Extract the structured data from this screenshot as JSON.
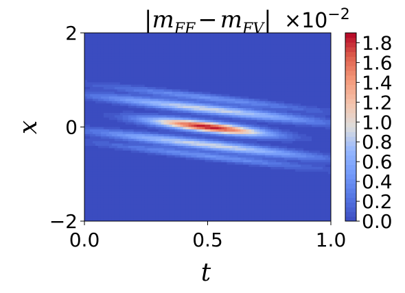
{
  "chart_data": {
    "type": "heatmap",
    "title": "|m_FF − m_FV|",
    "title_parts": {
      "bar": "|",
      "m1": "m",
      "sub1": "FF",
      "minus": "−",
      "m2": "m",
      "sub2": "FV",
      "bar_end": "|"
    },
    "offset_text": {
      "base": "×10",
      "exponent": "−2"
    },
    "xlabel": "t",
    "ylabel": "x",
    "xlim": [
      0.0,
      1.0
    ],
    "ylim": [
      -2,
      2
    ],
    "x_ticks": [
      "0.0",
      "0.5",
      "1.0"
    ],
    "x_tick_values": [
      0.0,
      0.5,
      1.0
    ],
    "y_ticks": [
      "−2",
      "0",
      "2"
    ],
    "y_tick_values": [
      -2,
      0,
      2
    ],
    "colorbar": {
      "colormap": "coolwarm",
      "range": [
        0.0,
        1.9
      ],
      "ticks": [
        "0.0",
        "0.2",
        "0.4",
        "0.6",
        "0.8",
        "1.0",
        "1.2",
        "1.4",
        "1.6",
        "1.8"
      ],
      "tick_values": [
        0.0,
        0.2,
        0.4,
        0.6,
        0.8,
        1.0,
        1.2,
        1.4,
        1.6,
        1.8
      ]
    },
    "field": {
      "description_of_shape": "elongated band along x = 0.3 - 0.6 t, peak near t = 0.5, x = 0",
      "peak_value": 1.9,
      "peak_t": 0.5,
      "peak_x": 0.0,
      "band_center_intercept": 0.3,
      "band_center_slope": -0.6,
      "side_lobe_value": 0.95
    },
    "grid": false,
    "colors": {
      "low": "#3b4cc0",
      "mid": "#dddddd",
      "high": "#b40426"
    }
  }
}
